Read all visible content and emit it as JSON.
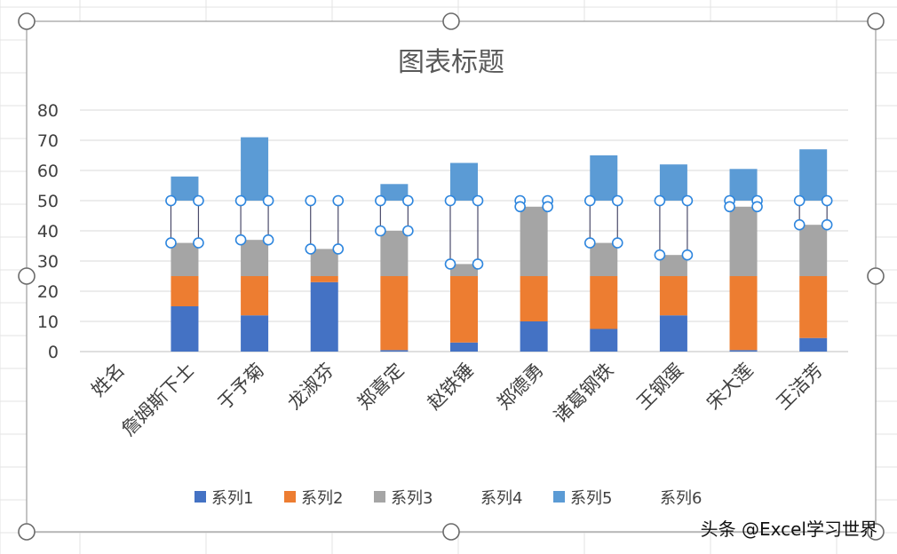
{
  "chart_data": {
    "type": "bar",
    "stacked": true,
    "title": "图表标题",
    "categories": [
      "姓名",
      "詹姆斯下士",
      "于予菊",
      "龙淑芬",
      "郑喜定",
      "赵铁锤",
      "郑德勇",
      "诸葛钢铁",
      "王钢蛋",
      "宋大莲",
      "王洁芳"
    ],
    "series": [
      {
        "name": "系列1",
        "color": "#4472C4",
        "values": [
          0,
          15,
          12,
          23,
          0.5,
          3,
          10,
          7.5,
          12,
          0.5,
          4.5
        ]
      },
      {
        "name": "系列2",
        "color": "#ED7D31",
        "values": [
          0,
          10,
          13,
          2,
          24.5,
          22,
          15,
          17.5,
          13,
          24.5,
          20.5
        ]
      },
      {
        "name": "系列3",
        "color": "#A5A5A5",
        "values": [
          0,
          11,
          12,
          9,
          15,
          4,
          23,
          11,
          7,
          23,
          17
        ]
      },
      {
        "name": "系列4",
        "color": "none",
        "values": [
          0,
          14,
          13,
          16,
          10,
          21,
          2,
          14,
          18,
          2,
          8
        ]
      },
      {
        "name": "系列5",
        "color": "#5B9BD5",
        "values": [
          0,
          8,
          21,
          0,
          5.5,
          12.5,
          0,
          15,
          12,
          10.5,
          17
        ]
      },
      {
        "name": "系列6",
        "color": "none",
        "values": [
          0,
          0,
          0,
          0,
          0,
          0,
          0,
          0,
          0,
          0,
          0
        ]
      }
    ],
    "ylim": [
      0,
      80
    ],
    "yticks": [
      0,
      10,
      20,
      30,
      40,
      50,
      60,
      70,
      80
    ],
    "xlabel": "",
    "ylabel": "",
    "grid": true,
    "legend_position": "bottom"
  },
  "watermark": "头条 @Excel学习世界"
}
